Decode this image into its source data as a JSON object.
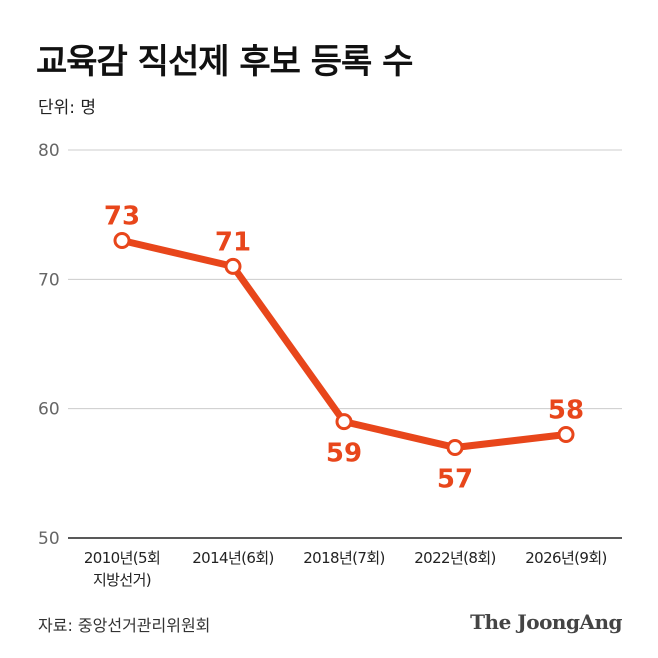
{
  "header": {
    "title": "교육감 직선제 후보 등록 수",
    "unit": "단위: 명"
  },
  "footer": {
    "source": "자료: 중앙선거관리위원회",
    "logo": "The JoongAng"
  },
  "colors": {
    "line": "#e8461b",
    "label": "#e8461b",
    "grid": "#cccccc",
    "axis": "#222222",
    "tick": "#666666"
  },
  "chart_data": {
    "type": "line",
    "title": "교육감 직선제 후보 등록 수",
    "ylabel": "단위: 명",
    "categories": [
      [
        "2010년(5회",
        "지방선거)"
      ],
      [
        "2014년(6회)"
      ],
      [
        "2018년(7회)"
      ],
      [
        "2022년(8회)"
      ],
      [
        "2026년(9회)"
      ]
    ],
    "values": [
      73,
      71,
      59,
      57,
      58
    ],
    "label_position": [
      "above",
      "above",
      "below",
      "below",
      "above"
    ],
    "ylim": [
      50,
      80
    ],
    "yticks": [
      50,
      60,
      70,
      80
    ],
    "grid": true,
    "legend": "none"
  }
}
